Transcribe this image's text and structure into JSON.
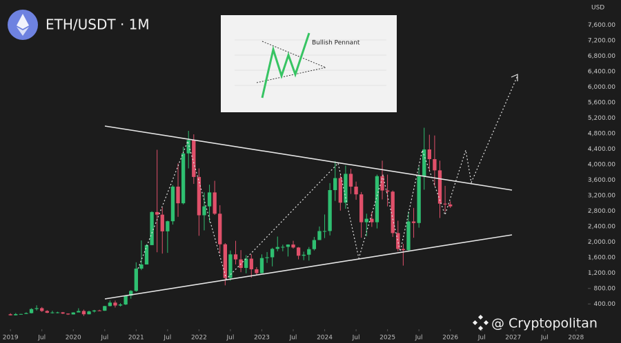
{
  "chart_data": {
    "type": "candlestick",
    "title": "ETH/USDT · 1M",
    "y_axis_label": "USD",
    "annotation": "Bullish Pennant",
    "watermark": "@ Cryptopolitan",
    "up_color": "#2fbf71",
    "down_color": "#e0506a",
    "x": [
      "2019-01",
      "2019-02",
      "2019-03",
      "2019-04",
      "2019-05",
      "2019-06",
      "2019-07",
      "2019-08",
      "2019-09",
      "2019-10",
      "2019-11",
      "2019-12",
      "2020-01",
      "2020-02",
      "2020-03",
      "2020-04",
      "2020-05",
      "2020-06",
      "2020-07",
      "2020-08",
      "2020-09",
      "2020-10",
      "2020-11",
      "2020-12",
      "2021-01",
      "2021-02",
      "2021-03",
      "2021-04",
      "2021-05",
      "2021-06",
      "2021-07",
      "2021-08",
      "2021-09",
      "2021-10",
      "2021-11",
      "2021-12",
      "2022-01",
      "2022-02",
      "2022-03",
      "2022-04",
      "2022-05",
      "2022-06",
      "2022-07",
      "2022-08",
      "2022-09",
      "2022-10",
      "2022-11",
      "2022-12",
      "2023-01",
      "2023-02",
      "2023-03",
      "2023-04",
      "2023-05",
      "2023-06",
      "2023-07",
      "2023-08",
      "2023-09",
      "2023-10",
      "2023-11",
      "2023-12",
      "2024-01",
      "2024-02",
      "2024-03",
      "2024-04",
      "2024-05",
      "2024-06",
      "2024-07",
      "2024-08",
      "2024-09",
      "2024-10",
      "2024-11",
      "2024-12",
      "2025-01",
      "2025-02",
      "2025-03",
      "2025-04",
      "2025-05",
      "2025-06",
      "2025-07",
      "2025-08",
      "2025-09",
      "2025-10",
      "2025-11",
      "2025-12",
      "2026-01"
    ],
    "open": [
      133,
      107,
      136,
      141,
      162,
      268,
      290,
      218,
      172,
      180,
      182,
      151,
      129,
      180,
      218,
      133,
      206,
      231,
      225,
      345,
      434,
      359,
      386,
      616,
      737,
      1312,
      1419,
      1919,
      2773,
      2706,
      2275,
      2536,
      3430,
      3000,
      4288,
      4630,
      3680,
      2690,
      2920,
      3280,
      2730,
      1940,
      1070,
      1680,
      1550,
      1330,
      1570,
      1295,
      1196,
      1585,
      1605,
      1822,
      1870,
      1874,
      1934,
      1857,
      1645,
      1671,
      1815,
      2050,
      2282,
      2283,
      3340,
      3650,
      3015,
      3760,
      3430,
      3230,
      2510,
      2600,
      2510,
      3700,
      3330,
      3300,
      2230,
      1820,
      1790,
      2530,
      2490,
      3700,
      4390,
      4140,
      3850,
      2990,
      2970
    ],
    "high": [
      160,
      165,
      145,
      185,
      288,
      364,
      320,
      239,
      223,
      198,
      193,
      154,
      185,
      288,
      253,
      227,
      247,
      250,
      350,
      488,
      488,
      420,
      623,
      755,
      1475,
      2040,
      1944,
      2795,
      4380,
      2890,
      2550,
      3470,
      4030,
      4460,
      4870,
      4780,
      3900,
      3280,
      3480,
      3580,
      2950,
      1970,
      1780,
      2030,
      1790,
      1660,
      1680,
      1350,
      1680,
      1740,
      1850,
      2140,
      1930,
      1940,
      2030,
      1870,
      1750,
      1870,
      2130,
      2400,
      2710,
      3520,
      4090,
      3730,
      3975,
      3890,
      3560,
      3290,
      2730,
      2770,
      3740,
      4100,
      3740,
      3330,
      2550,
      1950,
      2790,
      2880,
      3940,
      4950,
      4770,
      4750,
      4100,
      3450,
      3050
    ],
    "low": [
      102,
      102,
      126,
      138,
      155,
      230,
      193,
      162,
      152,
      156,
      138,
      117,
      126,
      213,
      90,
      128,
      180,
      216,
      220,
      336,
      308,
      334,
      371,
      535,
      714,
      1274,
      1430,
      1920,
      1735,
      1700,
      1720,
      2450,
      2650,
      2970,
      3900,
      3500,
      2160,
      2300,
      2510,
      2700,
      1700,
      880,
      1000,
      1420,
      1220,
      1190,
      1080,
      1150,
      1190,
      1460,
      1370,
      1760,
      1760,
      1625,
      1830,
      1550,
      1530,
      1520,
      1780,
      2050,
      2100,
      2170,
      3060,
      2810,
      2860,
      3240,
      3090,
      2110,
      2150,
      2390,
      2350,
      3100,
      2920,
      2130,
      1760,
      1390,
      1750,
      2110,
      2370,
      3350,
      3830,
      3440,
      2620,
      2780,
      2880
    ],
    "close": [
      107,
      136,
      141,
      162,
      268,
      290,
      218,
      172,
      180,
      182,
      151,
      129,
      180,
      218,
      133,
      206,
      231,
      225,
      345,
      434,
      359,
      386,
      616,
      737,
      1312,
      1419,
      1919,
      2773,
      2706,
      2275,
      2536,
      3430,
      3000,
      4288,
      4630,
      3680,
      2690,
      2920,
      3280,
      2730,
      1940,
      1070,
      1680,
      1550,
      1330,
      1570,
      1295,
      1196,
      1585,
      1605,
      1822,
      1870,
      1874,
      1934,
      1857,
      1645,
      1671,
      1815,
      2050,
      2282,
      2283,
      3340,
      3650,
      3015,
      3760,
      3430,
      3230,
      2510,
      2600,
      2510,
      3700,
      3330,
      3300,
      2230,
      1820,
      1790,
      2530,
      2490,
      3700,
      4390,
      4140,
      3850,
      2990,
      2970,
      2920
    ],
    "xlim": [
      "2018-11",
      "2028-03"
    ],
    "xticks": [
      {
        "value": "2019-01",
        "label": "2019"
      },
      {
        "value": "2019-07",
        "label": "Jul"
      },
      {
        "value": "2020-01",
        "label": "2020"
      },
      {
        "value": "2020-07",
        "label": "Jul"
      },
      {
        "value": "2021-01",
        "label": "2021"
      },
      {
        "value": "2021-07",
        "label": "Jul"
      },
      {
        "value": "2022-01",
        "label": "2022"
      },
      {
        "value": "2022-07",
        "label": "Jul"
      },
      {
        "value": "2023-01",
        "label": "2023"
      },
      {
        "value": "2023-07",
        "label": "Jul"
      },
      {
        "value": "2024-01",
        "label": "2024"
      },
      {
        "value": "2024-07",
        "label": "Jul"
      },
      {
        "value": "2025-01",
        "label": "2025"
      },
      {
        "value": "2025-07",
        "label": "Jul"
      },
      {
        "value": "2026-01",
        "label": "2026"
      },
      {
        "value": "2026-07",
        "label": "Jul"
      },
      {
        "value": "2027-01",
        "label": "2027"
      },
      {
        "value": "2027-07",
        "label": "Jul"
      },
      {
        "value": "2028-01",
        "label": "2028"
      }
    ],
    "ylim": [
      -200,
      8250
    ],
    "yticks": [
      {
        "value": 400,
        "label": "400.00"
      },
      {
        "value": 800,
        "label": "800.00"
      },
      {
        "value": 1200,
        "label": "1,200.00"
      },
      {
        "value": 1600,
        "label": "1,600.00"
      },
      {
        "value": 2000,
        "label": "2,000.00"
      },
      {
        "value": 2400,
        "label": "2,400.00"
      },
      {
        "value": 2800,
        "label": "2,800.00"
      },
      {
        "value": 3200,
        "label": "3,200.00"
      },
      {
        "value": 3600,
        "label": "3,600.00"
      },
      {
        "value": 4000,
        "label": "4,000.00"
      },
      {
        "value": 4400,
        "label": "4,400.00"
      },
      {
        "value": 4800,
        "label": "4,800.00"
      },
      {
        "value": 5200,
        "label": "5,200.00"
      },
      {
        "value": 5600,
        "label": "5,600.00"
      },
      {
        "value": 6000,
        "label": "6,000.00"
      },
      {
        "value": 6400,
        "label": "6,400.00"
      },
      {
        "value": 6800,
        "label": "6,800.00"
      },
      {
        "value": 7200,
        "label": "7,200.00"
      },
      {
        "value": 7600,
        "label": "7,600.00"
      }
    ]
  }
}
